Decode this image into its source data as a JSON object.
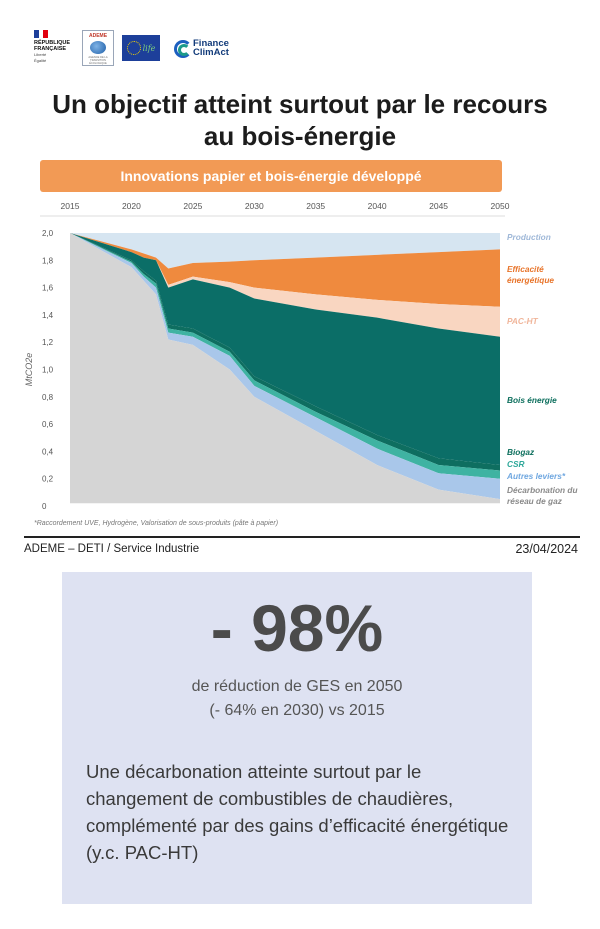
{
  "logos": {
    "rf_line1": "RÉPUBLIQUE",
    "rf_line2": "FRANÇAISE",
    "rf_motto_1": "Liberté",
    "rf_motto_2": "Égalité",
    "rf_motto_3": "Fraternité",
    "ademe": "ADEME",
    "ademe_sub": "AGENCE DE LA TRANSITION ÉCOLOGIQUE",
    "life": "life",
    "fca_1": "Finance",
    "fca_2": "ClimAct"
  },
  "title_line1": "Un objectif atteint surtout par le recours",
  "title_line2": "au bois-énergie",
  "chart_data": {
    "type": "area",
    "banner": "Innovations papier et bois-énergie développé",
    "ylabel": "MtCO2e",
    "ylim": [
      0,
      2.0
    ],
    "yticks": [
      "0",
      "0,2",
      "0,4",
      "0,6",
      "0,8",
      "1,0",
      "1,2",
      "1,4",
      "1,6",
      "1,8",
      "2,0"
    ],
    "xticks": [
      "2015",
      "2020",
      "2025",
      "2030",
      "2035",
      "2040",
      "2045",
      "2050"
    ],
    "x": [
      2015,
      2020,
      2021,
      2022,
      2023,
      2025,
      2028,
      2030,
      2035,
      2040,
      2045,
      2050
    ],
    "series": [
      {
        "name": "Décarbonation du réseau de gaz",
        "color": "#d5d5d5",
        "values": [
          0,
          0,
          0,
          0,
          0,
          0,
          0,
          0,
          0,
          0,
          0,
          0
        ],
        "top": [
          2.0,
          1.75,
          1.65,
          1.55,
          1.22,
          1.18,
          1.0,
          0.8,
          0.55,
          0.3,
          0.12,
          0.05
        ]
      },
      {
        "name": "Autres leviers*",
        "color": "#a9c7ea",
        "top": [
          2.0,
          1.78,
          1.68,
          1.6,
          1.27,
          1.24,
          1.1,
          0.88,
          0.65,
          0.42,
          0.24,
          0.2
        ]
      },
      {
        "name": "CSR",
        "color": "#3fb3a2",
        "top": [
          2.0,
          1.79,
          1.7,
          1.63,
          1.3,
          1.27,
          1.13,
          0.92,
          0.69,
          0.48,
          0.3,
          0.26
        ]
      },
      {
        "name": "Biogaz",
        "color": "#0e6e60",
        "top": [
          2.0,
          1.8,
          1.72,
          1.65,
          1.33,
          1.3,
          1.16,
          0.95,
          0.73,
          0.52,
          0.35,
          0.3
        ]
      },
      {
        "name": "Bois énergie",
        "color": "#0b6e67",
        "top": [
          2.0,
          1.86,
          1.82,
          1.8,
          1.6,
          1.66,
          1.6,
          1.52,
          1.44,
          1.38,
          1.3,
          1.24
        ]
      },
      {
        "name": "PAC-HT",
        "color": "#f9d6c1",
        "top": [
          2.0,
          1.86,
          1.82,
          1.8,
          1.62,
          1.68,
          1.64,
          1.6,
          1.55,
          1.51,
          1.48,
          1.46
        ]
      },
      {
        "name": "Efficacité énergétique",
        "color": "#ef8a3e",
        "top": [
          2.0,
          1.88,
          1.85,
          1.82,
          1.74,
          1.78,
          1.79,
          1.8,
          1.82,
          1.84,
          1.86,
          1.88
        ]
      },
      {
        "name": "Production",
        "color": "#cfe0ef",
        "top": [
          2.0,
          2.0,
          2.0,
          2.0,
          2.0,
          2.0,
          2.0,
          2.0,
          2.0,
          2.0,
          2.0,
          2.0
        ]
      }
    ],
    "legend": [
      {
        "name": "Production",
        "color": "#9fb8d8"
      },
      {
        "name": "Efficacité énergétique",
        "color": "#e8742a"
      },
      {
        "name": "PAC-HT",
        "color": "#f0b59a"
      },
      {
        "name": "Bois énergie",
        "color": "#0b6e5c"
      },
      {
        "name": "Biogaz",
        "color": "#0b6e5c"
      },
      {
        "name": "CSR",
        "color": "#2fa89a"
      },
      {
        "name": "Autres leviers*",
        "color": "#6fa7e0"
      },
      {
        "name": "Décarbonation du réseau de gaz",
        "color": "#8a8a8a"
      }
    ],
    "footnote": "*Raccordement UVE, Hydrogène, Valorisation de sous-produits (pâte à papier)"
  },
  "footer": {
    "source": "ADEME – DETI / Service Industrie",
    "date": "23/04/2024"
  },
  "callout": {
    "big": "- 98%",
    "sub1": "de réduction de GES en 2050",
    "sub2": "(- 64% en 2030) vs 2015",
    "body": "Une décarbonation atteinte surtout par le changement de combustibles de chaudières, complémenté par des gains d’efficacité énergétique (y.c. PAC-HT)"
  },
  "colors": {
    "banner": "#f29a55",
    "panel": "#dee2f2"
  }
}
